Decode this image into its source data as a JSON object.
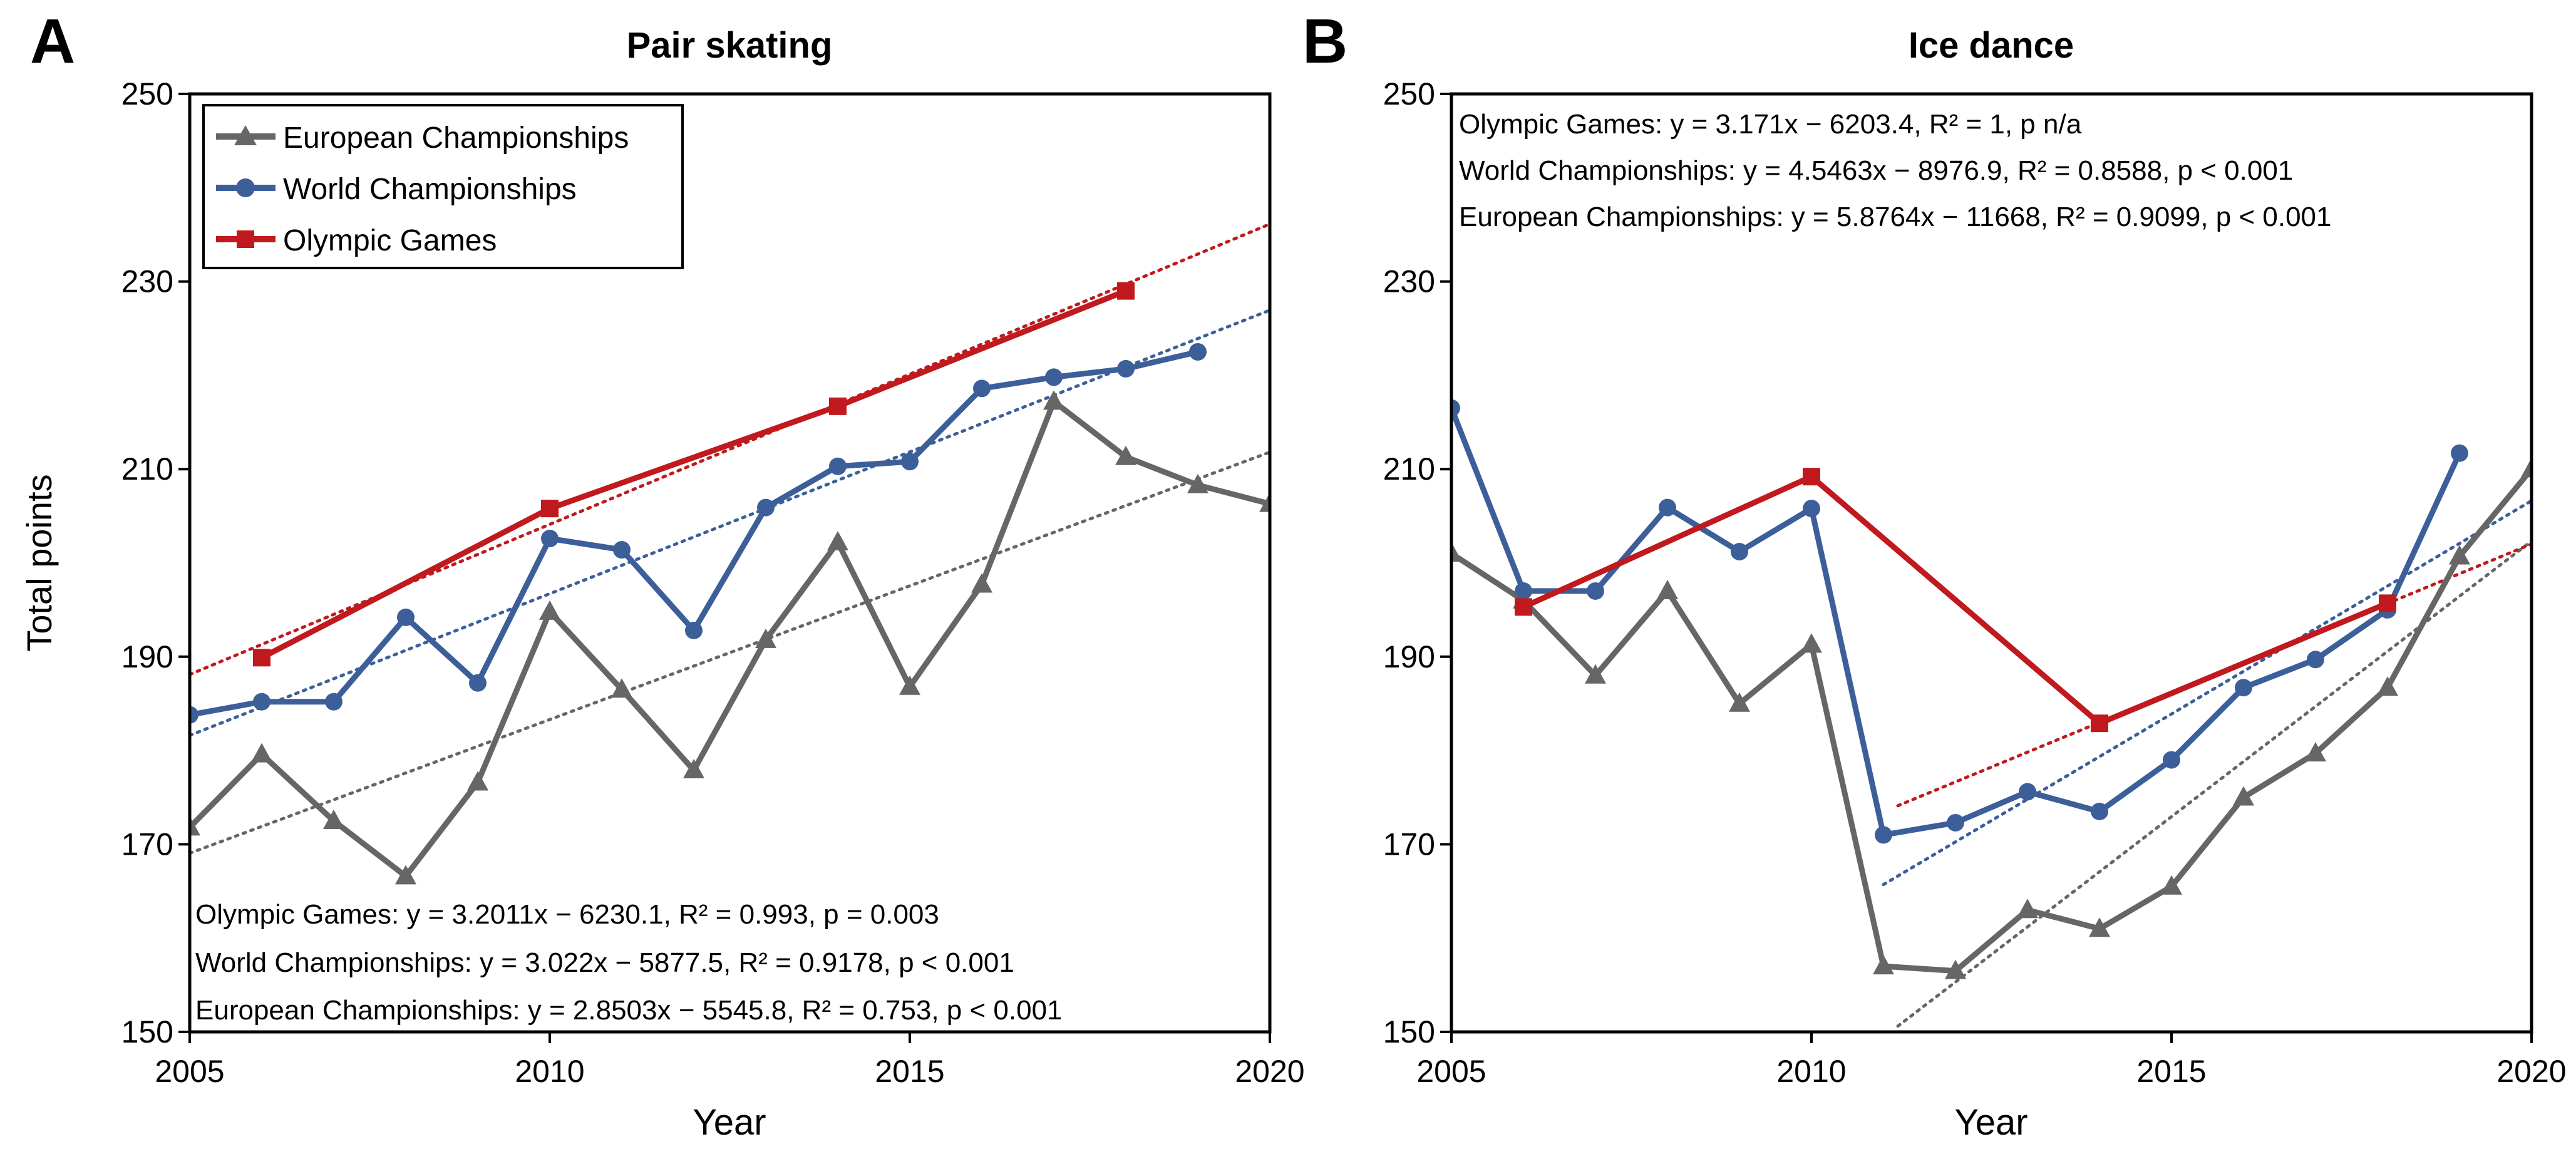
{
  "chart_data": [
    {
      "panel_label": "A",
      "type": "line",
      "title": "Pair skating",
      "xlabel": "Year",
      "ylabel": "Total points",
      "xlim": [
        2005,
        2020
      ],
      "ylim": [
        150,
        250
      ],
      "xticks": [
        "2005",
        "2010",
        "2015",
        "2020"
      ],
      "yticks": [
        "150",
        "170",
        "190",
        "210",
        "230",
        "250"
      ],
      "legend_position": "top-left",
      "series": [
        {
          "name": "European Championships",
          "color": "#666666",
          "marker": "triangle",
          "x": [
            2005,
            2006,
            2007,
            2008,
            2009,
            2010,
            2011,
            2012,
            2013,
            2014,
            2015,
            2016,
            2017,
            2018,
            2019,
            2020
          ],
          "y": [
            171.8,
            179.6,
            172.5,
            166.6,
            176.6,
            194.8,
            186.5,
            177.9,
            191.8,
            202.2,
            186.8,
            197.7,
            217.2,
            211.3,
            208.3,
            206.3
          ],
          "trend": {
            "slope": 2.8503,
            "intercept": -5545.8,
            "x": [
              2005,
              2020
            ]
          }
        },
        {
          "name": "World Championships",
          "color": "#3c5f9a",
          "marker": "circle",
          "x": [
            2005,
            2006,
            2007,
            2008,
            2009,
            2010,
            2011,
            2012,
            2013,
            2014,
            2015,
            2016,
            2017,
            2018,
            2019
          ],
          "y": [
            183.8,
            185.2,
            185.2,
            194.2,
            187.2,
            202.6,
            201.4,
            192.8,
            205.9,
            210.3,
            210.8,
            218.6,
            219.8,
            220.7,
            222.5
          ],
          "trend": {
            "slope": 3.022,
            "intercept": -5877.5,
            "x": [
              2005,
              2020
            ]
          }
        },
        {
          "name": "Olympic Games",
          "color": "#c0191e",
          "marker": "square",
          "x": [
            2006,
            2010,
            2014,
            2018
          ],
          "y": [
            189.9,
            205.8,
            216.7,
            229.0
          ],
          "trend": {
            "slope": 3.2011,
            "intercept": -6230.1,
            "x": [
              2005,
              2020
            ]
          }
        }
      ],
      "annotations": [
        "Olympic Games: y = 3.2011x − 6230.1, R² = 0.993, p = 0.003",
        "World Championships: y = 3.022x − 5877.5, R² = 0.9178, p < 0.001",
        "European Championships: y = 2.8503x − 5545.8, R² = 0.753, p < 0.001"
      ]
    },
    {
      "panel_label": "B",
      "type": "line",
      "title": "Ice dance",
      "xlabel": "Year",
      "ylabel": "",
      "xlim": [
        2005,
        2020
      ],
      "ylim": [
        150,
        250
      ],
      "xticks": [
        "2005",
        "2010",
        "2015",
        "2020"
      ],
      "yticks": [
        "150",
        "170",
        "190",
        "210",
        "230",
        "250"
      ],
      "series": [
        {
          "name": "European Championships",
          "color": "#666666",
          "marker": "triangle",
          "x": [
            2005,
            2006,
            2007,
            2008,
            2009,
            2010,
            2011,
            2012,
            2013,
            2014,
            2015,
            2016,
            2017,
            2018,
            2019,
            2020
          ],
          "y": [
            201.0,
            196.0,
            188.0,
            197.0,
            185.0,
            191.3,
            157.0,
            156.5,
            163.0,
            161.0,
            165.5,
            175.0,
            179.7,
            186.7,
            200.7,
            210.0
          ],
          "trend": {
            "slope": 5.8764,
            "intercept": -11668,
            "x": [
              2011.2,
              2020
            ]
          }
        },
        {
          "name": "World Championships",
          "color": "#3c5f9a",
          "marker": "circle",
          "x": [
            2005,
            2006,
            2007,
            2008,
            2009,
            2010,
            2011,
            2012,
            2013,
            2014,
            2015,
            2016,
            2017,
            2018,
            2019
          ],
          "y": [
            216.5,
            197.0,
            197.0,
            205.9,
            201.2,
            205.8,
            171.0,
            172.3,
            175.6,
            173.5,
            179.0,
            186.7,
            189.7,
            195.0,
            211.7
          ],
          "trend": {
            "slope": 4.5463,
            "intercept": -8976.9,
            "x": [
              2011,
              2020
            ]
          }
        },
        {
          "name": "Olympic Games",
          "color": "#c0191e",
          "marker": "square",
          "x": [
            2006,
            2010,
            2014,
            2018
          ],
          "y": [
            195.3,
            209.2,
            182.9,
            195.7
          ],
          "trend": {
            "slope": 3.171,
            "intercept": -6203.4,
            "x": [
              2011.2,
              2020
            ]
          }
        }
      ],
      "annotations": [
        "Olympic Games: y = 3.171x − 6203.4, R² = 1, p n/a",
        "World Championships: y = 4.5463x − 8976.9, R² = 0.8588, p < 0.001",
        "European Championships: y = 5.8764x − 11668, R² = 0.9099, p < 0.001"
      ]
    }
  ]
}
